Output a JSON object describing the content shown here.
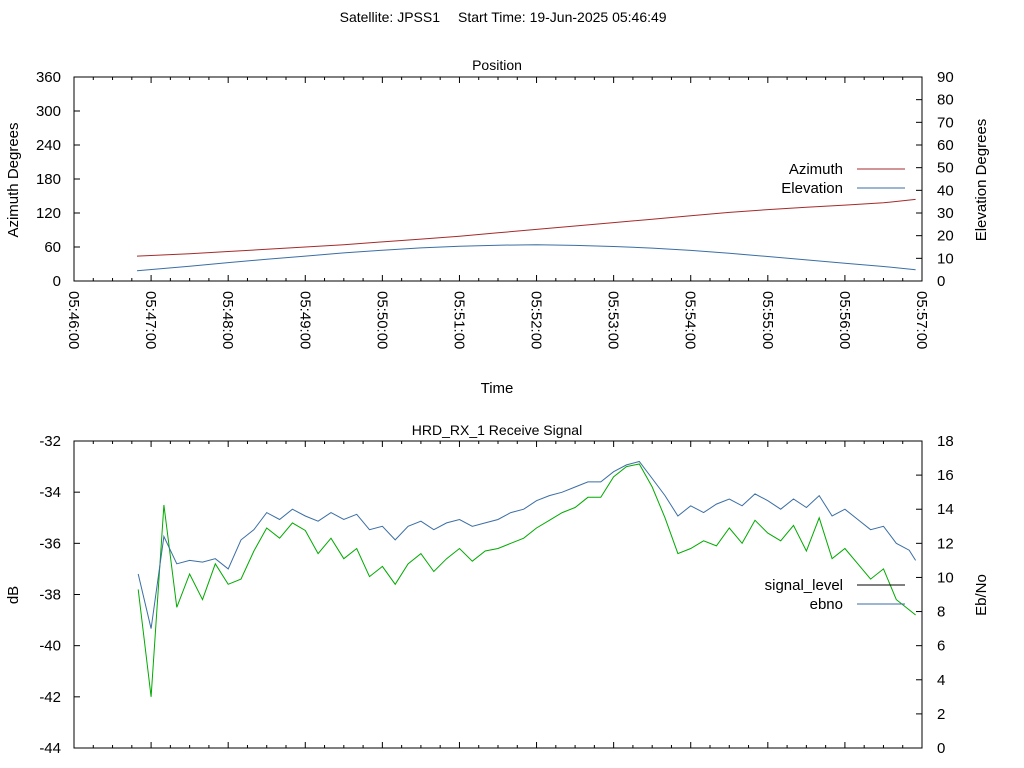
{
  "header": {
    "satellite_label": "Satellite: JPSS1",
    "start_time_label": "Start Time: 19-Jun-2025 05:46:49"
  },
  "chart_data": [
    {
      "type": "line",
      "title": "Position",
      "xlabel": "Time",
      "ylabel": "Azimuth Degrees",
      "y2label": "Elevation Degrees",
      "x_range": [
        "05:46:00",
        "05:57:00"
      ],
      "x_ticks": [
        "05:46:00",
        "05:47:00",
        "05:48:00",
        "05:49:00",
        "05:50:00",
        "05:51:00",
        "05:52:00",
        "05:53:00",
        "05:54:00",
        "05:55:00",
        "05:56:00",
        "05:57:00"
      ],
      "ylim": [
        0,
        360
      ],
      "y_ticks": [
        "0",
        "60",
        "120",
        "180",
        "240",
        "300",
        "360"
      ],
      "y2lim": [
        0,
        90
      ],
      "y2_ticks": [
        "0",
        "10",
        "20",
        "30",
        "40",
        "50",
        "60",
        "70",
        "80",
        "90"
      ],
      "legend_position": "right",
      "series": [
        {
          "name": "Azimuth",
          "axis": "left",
          "color": "#a52a2a",
          "x": [
            "05:46:49",
            "05:47:30",
            "05:48:00",
            "05:48:30",
            "05:49:00",
            "05:49:30",
            "05:50:00",
            "05:50:30",
            "05:51:00",
            "05:51:30",
            "05:52:00",
            "05:52:30",
            "05:53:00",
            "05:53:30",
            "05:54:00",
            "05:54:30",
            "05:55:00",
            "05:55:30",
            "05:56:00",
            "05:56:30",
            "05:56:55"
          ],
          "y": [
            44,
            48,
            52,
            56,
            60,
            64,
            69,
            74,
            79,
            85,
            91,
            97,
            103,
            109,
            115,
            121,
            126,
            130,
            134,
            138,
            144
          ]
        },
        {
          "name": "Elevation",
          "axis": "right",
          "color": "#3a6ea5",
          "x": [
            "05:46:49",
            "05:47:30",
            "05:48:00",
            "05:48:30",
            "05:49:00",
            "05:49:30",
            "05:50:00",
            "05:50:30",
            "05:51:00",
            "05:51:30",
            "05:52:00",
            "05:52:30",
            "05:53:00",
            "05:53:30",
            "05:54:00",
            "05:54:30",
            "05:55:00",
            "05:55:30",
            "05:56:00",
            "05:56:30",
            "05:56:55"
          ],
          "y": [
            4.5,
            6.5,
            8.1,
            9.6,
            11.0,
            12.4,
            13.6,
            14.6,
            15.3,
            15.8,
            16.0,
            15.7,
            15.2,
            14.5,
            13.5,
            12.2,
            10.8,
            9.3,
            7.8,
            6.4,
            5.0
          ]
        }
      ]
    },
    {
      "type": "line",
      "title": "HRD_RX_1 Receive Signal",
      "ylabel": "dB",
      "y2label": "Eb/No",
      "ylim": [
        -44,
        -32
      ],
      "y_ticks": [
        "-44",
        "-42",
        "-40",
        "-38",
        "-36",
        "-34",
        "-32"
      ],
      "y2lim": [
        0,
        18
      ],
      "y2_ticks": [
        "0",
        "2",
        "4",
        "6",
        "8",
        "10",
        "12",
        "14",
        "16",
        "18"
      ],
      "legend_position": "right",
      "legend_sample_colors": [
        "#000000",
        "#3a6ea5"
      ],
      "series": [
        {
          "name": "signal_level",
          "axis": "left",
          "color": "#00aa00",
          "x": [
            "05:46:50",
            "05:47:00",
            "05:47:10",
            "05:47:20",
            "05:47:30",
            "05:47:40",
            "05:47:50",
            "05:48:00",
            "05:48:10",
            "05:48:20",
            "05:48:30",
            "05:48:40",
            "05:48:50",
            "05:49:00",
            "05:49:10",
            "05:49:20",
            "05:49:30",
            "05:49:40",
            "05:49:50",
            "05:50:00",
            "05:50:10",
            "05:50:20",
            "05:50:30",
            "05:50:40",
            "05:50:50",
            "05:51:00",
            "05:51:10",
            "05:51:20",
            "05:51:30",
            "05:51:40",
            "05:51:50",
            "05:52:00",
            "05:52:10",
            "05:52:20",
            "05:52:30",
            "05:52:40",
            "05:52:50",
            "05:53:00",
            "05:53:10",
            "05:53:20",
            "05:53:30",
            "05:53:40",
            "05:53:50",
            "05:54:00",
            "05:54:10",
            "05:54:20",
            "05:54:30",
            "05:54:40",
            "05:54:50",
            "05:55:00",
            "05:55:10",
            "05:55:20",
            "05:55:30",
            "05:55:40",
            "05:55:50",
            "05:56:00",
            "05:56:10",
            "05:56:20",
            "05:56:30",
            "05:56:40",
            "05:56:50",
            "05:56:55"
          ],
          "y": [
            -37.8,
            -42.0,
            -34.5,
            -38.5,
            -37.2,
            -38.2,
            -36.8,
            -37.6,
            -37.4,
            -36.3,
            -35.4,
            -35.8,
            -35.2,
            -35.5,
            -36.4,
            -35.8,
            -36.6,
            -36.2,
            -37.3,
            -36.9,
            -37.6,
            -36.8,
            -36.4,
            -37.1,
            -36.6,
            -36.2,
            -36.7,
            -36.3,
            -36.2,
            -36.0,
            -35.8,
            -35.4,
            -35.1,
            -34.8,
            -34.6,
            -34.2,
            -34.2,
            -33.4,
            -33.0,
            -32.9,
            -33.8,
            -35.0,
            -36.4,
            -36.2,
            -35.9,
            -36.1,
            -35.4,
            -36.0,
            -35.1,
            -35.6,
            -35.9,
            -35.3,
            -36.3,
            -35.0,
            -36.6,
            -36.2,
            -36.8,
            -37.4,
            -37.0,
            -38.2,
            -38.6,
            -38.8
          ]
        },
        {
          "name": "ebno",
          "axis": "right",
          "color": "#3a6ea5",
          "x": [
            "05:46:50",
            "05:47:00",
            "05:47:10",
            "05:47:20",
            "05:47:30",
            "05:47:40",
            "05:47:50",
            "05:48:00",
            "05:48:10",
            "05:48:20",
            "05:48:30",
            "05:48:40",
            "05:48:50",
            "05:49:00",
            "05:49:10",
            "05:49:20",
            "05:49:30",
            "05:49:40",
            "05:49:50",
            "05:50:00",
            "05:50:10",
            "05:50:20",
            "05:50:30",
            "05:50:40",
            "05:50:50",
            "05:51:00",
            "05:51:10",
            "05:51:20",
            "05:51:30",
            "05:51:40",
            "05:51:50",
            "05:52:00",
            "05:52:10",
            "05:52:20",
            "05:52:30",
            "05:52:40",
            "05:52:50",
            "05:53:00",
            "05:53:10",
            "05:53:20",
            "05:53:30",
            "05:53:40",
            "05:53:50",
            "05:54:00",
            "05:54:10",
            "05:54:20",
            "05:54:30",
            "05:54:40",
            "05:54:50",
            "05:55:00",
            "05:55:10",
            "05:55:20",
            "05:55:30",
            "05:55:40",
            "05:55:50",
            "05:56:00",
            "05:56:10",
            "05:56:20",
            "05:56:30",
            "05:56:40",
            "05:56:50",
            "05:56:55"
          ],
          "y": [
            10.2,
            7.0,
            12.4,
            10.8,
            11.0,
            10.9,
            11.1,
            10.5,
            12.2,
            12.8,
            13.8,
            13.4,
            14.0,
            13.6,
            13.3,
            13.8,
            13.4,
            13.7,
            12.8,
            13.0,
            12.2,
            13.0,
            13.3,
            12.8,
            13.2,
            13.4,
            13.0,
            13.2,
            13.4,
            13.8,
            14.0,
            14.5,
            14.8,
            15.0,
            15.3,
            15.6,
            15.6,
            16.2,
            16.6,
            16.8,
            15.8,
            14.8,
            13.6,
            14.2,
            13.8,
            14.3,
            14.6,
            14.2,
            14.9,
            14.5,
            14.0,
            14.6,
            14.1,
            14.8,
            13.6,
            14.0,
            13.4,
            12.8,
            13.0,
            12.0,
            11.6,
            11.0
          ]
        }
      ]
    }
  ]
}
